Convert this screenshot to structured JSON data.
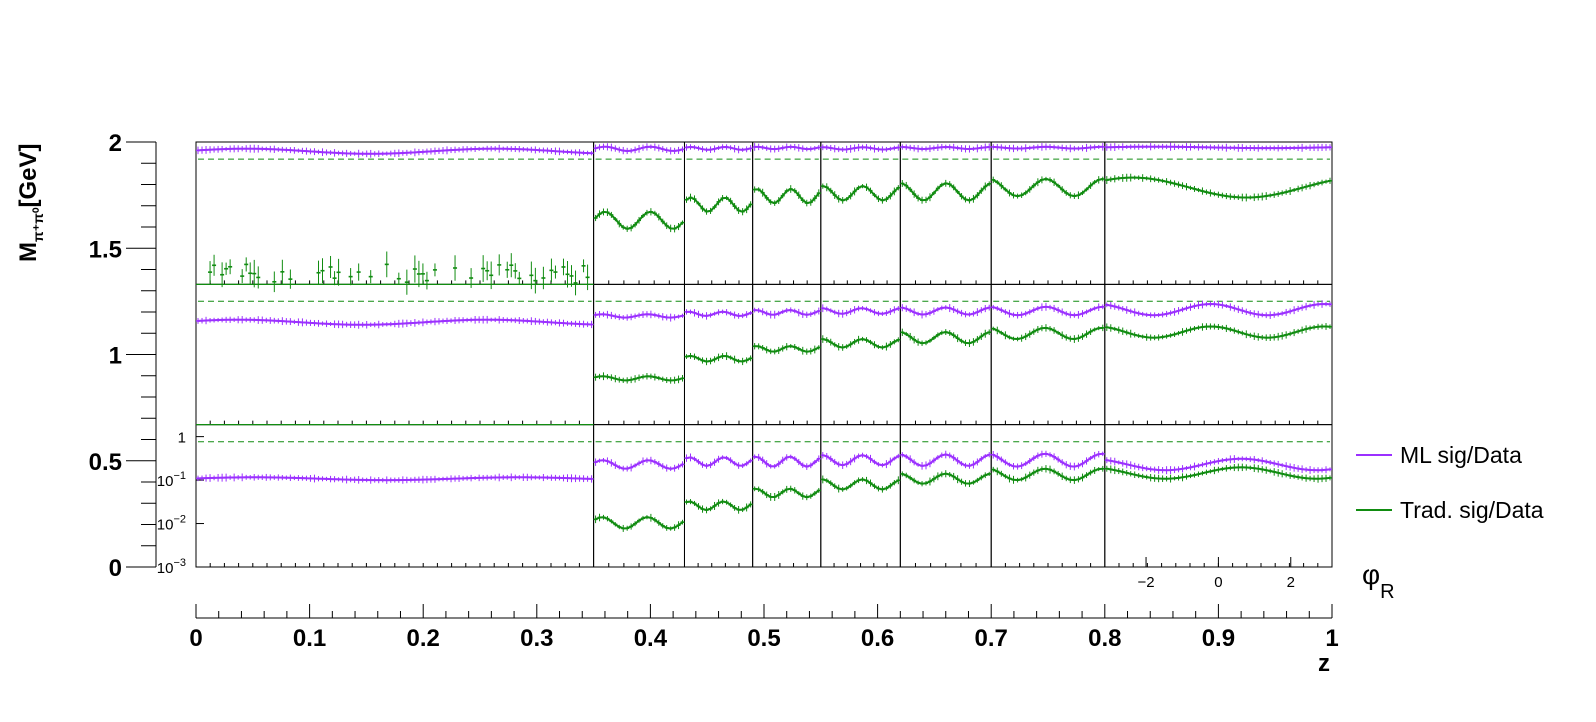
{
  "chart_data": {
    "type": "scatter",
    "ylabel": "M",
    "ylabel_sub": "π⁺π⁰",
    "ylabel_unit": "[GeV]",
    "xlabel": "z",
    "phi_label": "φ",
    "phi_sub": "R",
    "y_ticks": [
      "0",
      "0.5",
      "1",
      "1.5",
      "2"
    ],
    "x_ticks": [
      "0",
      "0.1",
      "0.2",
      "0.3",
      "0.4",
      "0.5",
      "0.6",
      "0.7",
      "0.8",
      "0.9",
      "1"
    ],
    "inner_ticks": [
      "1",
      "10",
      "10",
      "10"
    ],
    "inner_tick_exps": [
      "",
      "−1",
      "−2",
      "−3"
    ],
    "phi_ticks": [
      "−2",
      "0",
      "2"
    ],
    "z_bins": [
      0,
      0.35,
      0.43,
      0.49,
      0.55,
      0.62,
      0.7,
      0.8,
      1.0
    ],
    "m_bins": [
      0,
      0.67,
      1.33,
      2.0
    ],
    "phi_range": [
      -3.14,
      3.14
    ],
    "ratio_log_range": [
      -3,
      0
    ],
    "dashed_reference": 1,
    "legend": [
      {
        "label": "ML sig/Data",
        "color": "#9b30ff"
      },
      {
        "label": "Trad. sig/Data",
        "color": "#118c11"
      }
    ],
    "series": [
      {
        "name": "ML sig/Data",
        "color": "#9b30ff",
        "panels": [
          {
            "z": 0,
            "m": 2,
            "base": 0.935,
            "amp": 0.018,
            "freq": 1.6,
            "phase": 0.3
          },
          {
            "z": 1,
            "m": 2,
            "base": 0.952,
            "amp": 0.015,
            "freq": 2.0,
            "phase": 0.0
          },
          {
            "z": 2,
            "m": 2,
            "base": 0.955,
            "amp": 0.01,
            "freq": 2.0,
            "phase": 0.4
          },
          {
            "z": 3,
            "m": 2,
            "base": 0.958,
            "amp": 0.008,
            "freq": 2.0,
            "phase": 0.8
          },
          {
            "z": 4,
            "m": 2,
            "base": 0.955,
            "amp": 0.008,
            "freq": 2.0,
            "phase": 1.2
          },
          {
            "z": 5,
            "m": 2,
            "base": 0.958,
            "amp": 0.007,
            "freq": 2.0,
            "phase": 1.5
          },
          {
            "z": 6,
            "m": 2,
            "base": 0.96,
            "amp": 0.006,
            "freq": 2.0,
            "phase": 1.8
          },
          {
            "z": 7,
            "m": 2,
            "base": 0.962,
            "amp": 0.005,
            "freq": 1.0,
            "phase": 0.2
          },
          {
            "z": 0,
            "m": 1,
            "base": 0.73,
            "amp": 0.018,
            "freq": 1.6,
            "phase": 0.5
          },
          {
            "z": 1,
            "m": 1,
            "base": 0.775,
            "amp": 0.012,
            "freq": 2.0,
            "phase": 0.4
          },
          {
            "z": 2,
            "m": 1,
            "base": 0.79,
            "amp": 0.015,
            "freq": 2.0,
            "phase": 0.8
          },
          {
            "z": 3,
            "m": 1,
            "base": 0.8,
            "amp": 0.017,
            "freq": 2.0,
            "phase": 1.0
          },
          {
            "z": 4,
            "m": 1,
            "base": 0.81,
            "amp": 0.02,
            "freq": 2.0,
            "phase": 1.4
          },
          {
            "z": 5,
            "m": 1,
            "base": 0.81,
            "amp": 0.025,
            "freq": 2.0,
            "phase": 1.6
          },
          {
            "z": 6,
            "m": 1,
            "base": 0.81,
            "amp": 0.03,
            "freq": 2.0,
            "phase": 1.8
          },
          {
            "z": 7,
            "m": 1,
            "base": 0.82,
            "amp": 0.04,
            "freq": 2.0,
            "phase": 2.0
          },
          {
            "z": 0,
            "m": 0,
            "base": 0.62,
            "amp": 0.01,
            "freq": 1.5,
            "phase": 0.2
          },
          {
            "z": 1,
            "m": 0,
            "base": 0.72,
            "amp": 0.03,
            "freq": 2.0,
            "phase": 0.3
          },
          {
            "z": 2,
            "m": 0,
            "base": 0.74,
            "amp": 0.03,
            "freq": 2.0,
            "phase": 0.6
          },
          {
            "z": 3,
            "m": 0,
            "base": 0.74,
            "amp": 0.035,
            "freq": 2.0,
            "phase": 1.0
          },
          {
            "z": 4,
            "m": 0,
            "base": 0.75,
            "amp": 0.035,
            "freq": 2.0,
            "phase": 1.3
          },
          {
            "z": 5,
            "m": 0,
            "base": 0.75,
            "amp": 0.04,
            "freq": 2.0,
            "phase": 1.6
          },
          {
            "z": 6,
            "m": 0,
            "base": 0.75,
            "amp": 0.045,
            "freq": 2.0,
            "phase": 1.9
          },
          {
            "z": 7,
            "m": 0,
            "base": 0.72,
            "amp": 0.04,
            "freq": 1.5,
            "phase": 2.2
          }
        ]
      },
      {
        "name": "Trad. sig/Data",
        "color": "#118c11",
        "panels": [
          {
            "z": 0,
            "m": 2,
            "base": 0.08,
            "amp": 0.07,
            "freq": 1.0,
            "phase": 0.0,
            "sparse": true
          },
          {
            "z": 1,
            "m": 2,
            "base": 0.45,
            "amp": 0.06,
            "freq": 2.0,
            "phase": 0.0
          },
          {
            "z": 2,
            "m": 2,
            "base": 0.56,
            "amp": 0.05,
            "freq": 2.0,
            "phase": 0.4
          },
          {
            "z": 3,
            "m": 2,
            "base": 0.62,
            "amp": 0.05,
            "freq": 2.0,
            "phase": 0.8
          },
          {
            "z": 4,
            "m": 2,
            "base": 0.64,
            "amp": 0.05,
            "freq": 2.0,
            "phase": 1.2
          },
          {
            "z": 5,
            "m": 2,
            "base": 0.65,
            "amp": 0.06,
            "freq": 2.0,
            "phase": 1.5
          },
          {
            "z": 6,
            "m": 2,
            "base": 0.68,
            "amp": 0.06,
            "freq": 2.0,
            "phase": 1.8
          },
          {
            "z": 7,
            "m": 2,
            "base": 0.68,
            "amp": 0.07,
            "freq": 1.0,
            "phase": 0.8
          },
          {
            "z": 1,
            "m": 1,
            "base": 0.33,
            "amp": 0.015,
            "freq": 2.0,
            "phase": 0.3
          },
          {
            "z": 2,
            "m": 1,
            "base": 0.47,
            "amp": 0.02,
            "freq": 2.0,
            "phase": 0.5
          },
          {
            "z": 3,
            "m": 1,
            "base": 0.54,
            "amp": 0.02,
            "freq": 2.0,
            "phase": 0.9
          },
          {
            "z": 4,
            "m": 1,
            "base": 0.58,
            "amp": 0.03,
            "freq": 2.0,
            "phase": 1.3
          },
          {
            "z": 5,
            "m": 1,
            "base": 0.62,
            "amp": 0.04,
            "freq": 2.0,
            "phase": 1.6
          },
          {
            "z": 6,
            "m": 1,
            "base": 0.65,
            "amp": 0.04,
            "freq": 2.0,
            "phase": 1.9
          },
          {
            "z": 7,
            "m": 1,
            "base": 0.66,
            "amp": 0.04,
            "freq": 2.0,
            "phase": 2.0
          },
          {
            "z": 1,
            "m": 0,
            "base": 0.31,
            "amp": 0.04,
            "freq": 2.0,
            "phase": 0.4
          },
          {
            "z": 2,
            "m": 0,
            "base": 0.43,
            "amp": 0.03,
            "freq": 2.0,
            "phase": 0.7
          },
          {
            "z": 3,
            "m": 0,
            "base": 0.52,
            "amp": 0.03,
            "freq": 2.0,
            "phase": 1.0
          },
          {
            "z": 4,
            "m": 0,
            "base": 0.58,
            "amp": 0.035,
            "freq": 2.0,
            "phase": 1.3
          },
          {
            "z": 5,
            "m": 0,
            "base": 0.62,
            "amp": 0.035,
            "freq": 2.0,
            "phase": 1.6
          },
          {
            "z": 6,
            "m": 0,
            "base": 0.65,
            "amp": 0.04,
            "freq": 2.0,
            "phase": 1.9
          },
          {
            "z": 7,
            "m": 0,
            "base": 0.66,
            "amp": 0.04,
            "freq": 1.5,
            "phase": 2.2
          }
        ]
      }
    ]
  }
}
